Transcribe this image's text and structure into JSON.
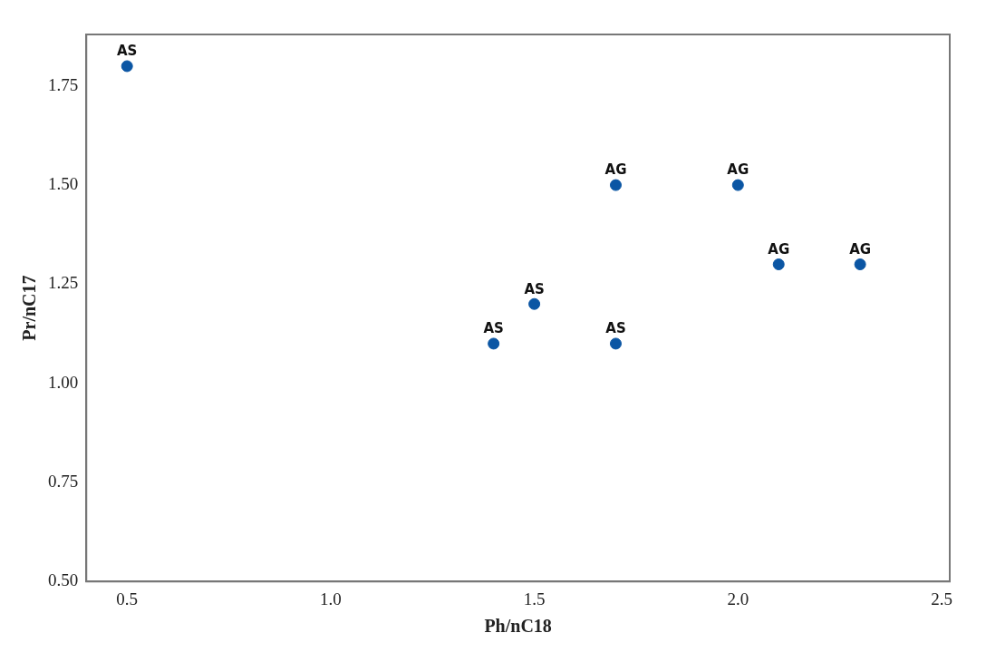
{
  "chart_data": {
    "type": "scatter",
    "xlabel": "Ph/nC18",
    "ylabel": "Pr/nC17",
    "x": [
      0.5,
      1.4,
      1.5,
      1.7,
      1.7,
      2.0,
      2.1,
      2.3
    ],
    "values": [
      1.8,
      1.1,
      1.2,
      1.1,
      1.5,
      1.5,
      1.3,
      1.3
    ],
    "color": "#0b56a4",
    "marker": "circle",
    "grid": false,
    "legend": false,
    "xlim": [
      0.4,
      2.52
    ],
    "xticks": [
      {
        "value": 0.5,
        "label": "0.5"
      },
      {
        "value": 1,
        "label": "1.0"
      },
      {
        "value": 1.5,
        "label": "1.5"
      },
      {
        "value": 2,
        "label": "2.0"
      },
      {
        "value": 2.5,
        "label": "2.5"
      }
    ],
    "ylim": [
      0.5,
      1.88
    ],
    "yticks": [
      {
        "value": 0.5,
        "label": "0.50"
      },
      {
        "value": 0.75,
        "label": "0.75"
      },
      {
        "value": 1,
        "label": "1.00"
      },
      {
        "value": 1.25,
        "label": "1.25"
      },
      {
        "value": 1.5,
        "label": "1.50"
      },
      {
        "value": 1.75,
        "label": "1.75"
      }
    ],
    "annotations": [
      {
        "text": "AS",
        "x": 0.5,
        "y": 1.8
      },
      {
        "text": "AS",
        "x": 1.4,
        "y": 1.1
      },
      {
        "text": "AS",
        "x": 1.5,
        "y": 1.2
      },
      {
        "text": "AS",
        "x": 1.7,
        "y": 1.1
      },
      {
        "text": "AG",
        "x": 1.7,
        "y": 1.5
      },
      {
        "text": "AG",
        "x": 2.0,
        "y": 1.5
      },
      {
        "text": "AG",
        "x": 2.1,
        "y": 1.3
      },
      {
        "text": "AG",
        "x": 2.3,
        "y": 1.3
      }
    ]
  }
}
